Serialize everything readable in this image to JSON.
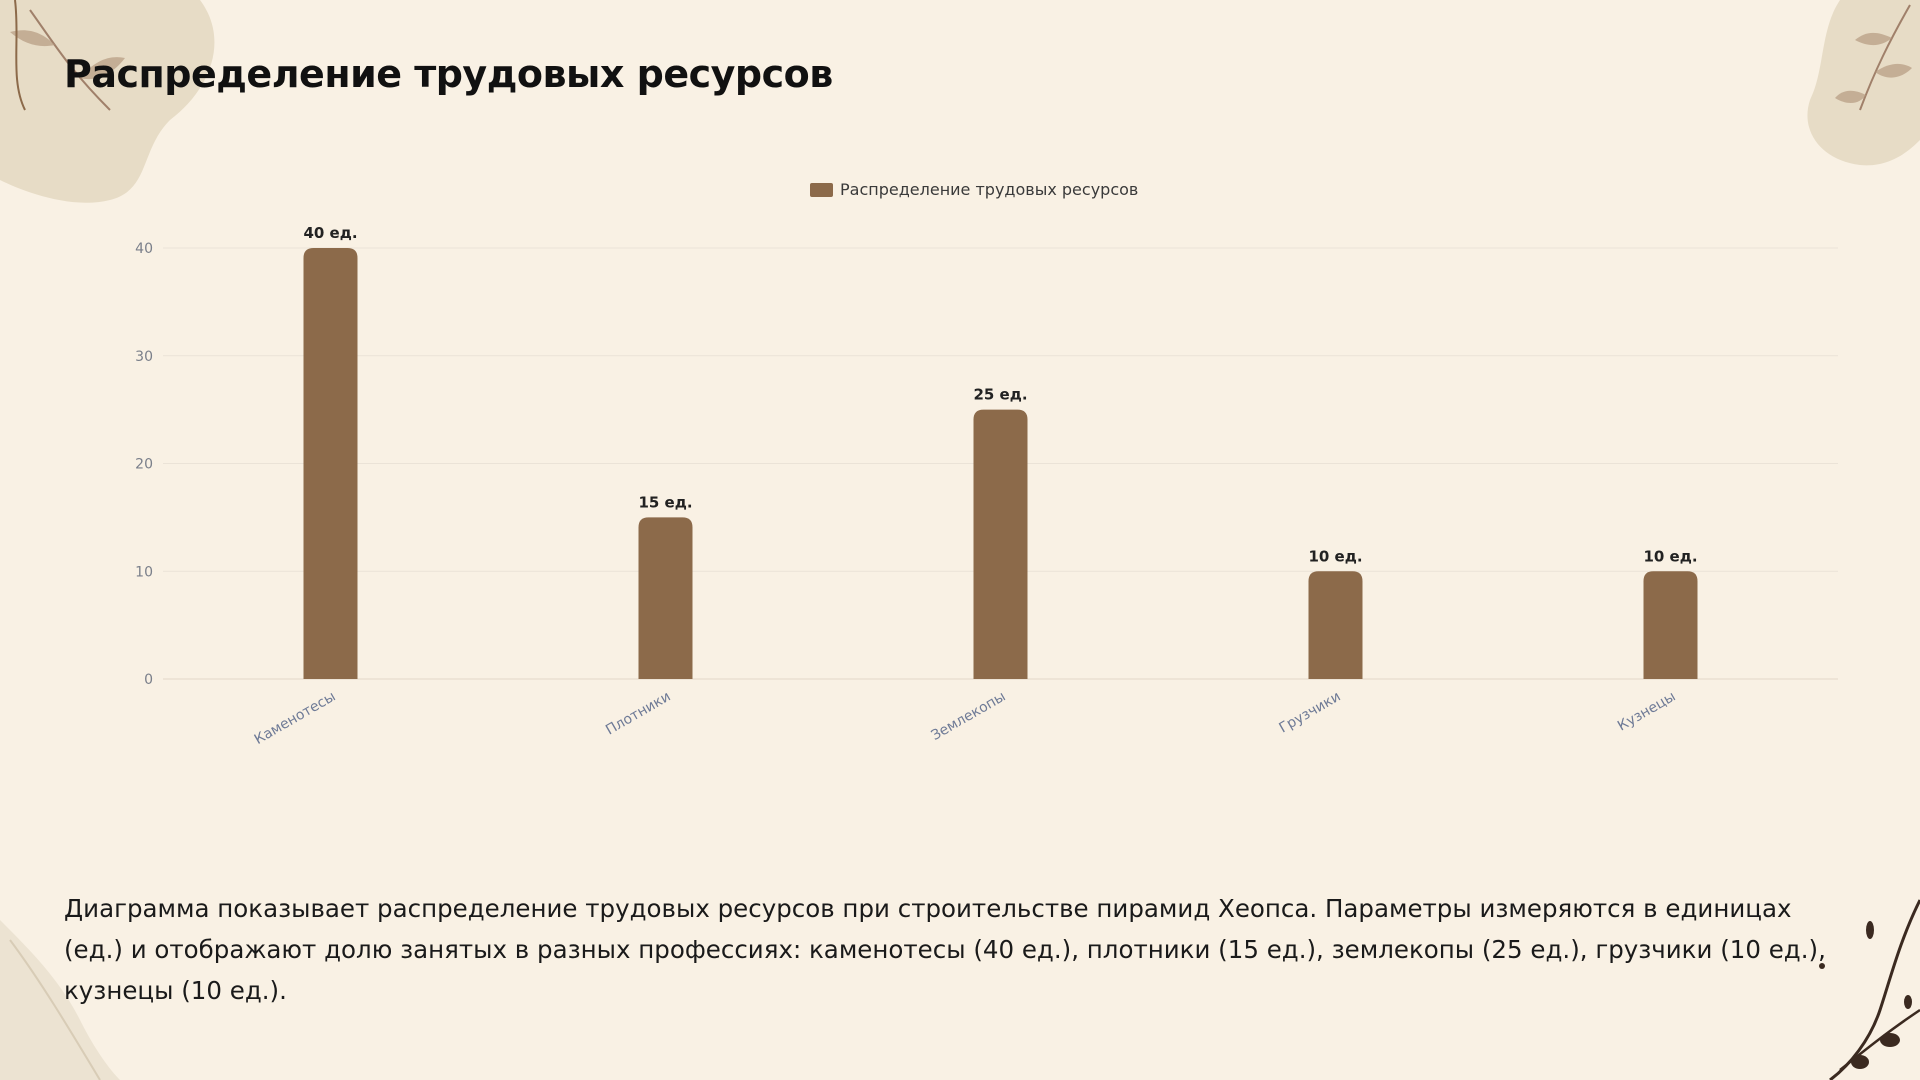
{
  "slide": {
    "title": "Распределение трудовых ресурсов",
    "caption": "Диаграмма показывает распределение трудовых ресурсов при строительстве пирамид Хеопса. Параметры измеряются в единицах (ед.) и отображают долю занятых в разных профессиях: каменотесы (40 ед.), плотники (15 ед.), землекопы (25 ед.), грузчики (10 ед.), кузнецы (10 ед.)."
  },
  "colors": {
    "background": "#f9f1e4",
    "bar": "#8c6a4a",
    "grid": "#ebe3d7",
    "tick_label": "#7a7f8a",
    "category_label": "#6e7a96",
    "data_label": "#222222",
    "title": "#111111",
    "caption": "#1a1a1a",
    "leaf_light": "#e7dcc6",
    "leaf_branch": "#a0806a",
    "branch_dark": "#3b2a20"
  },
  "chart_data": {
    "type": "bar",
    "categories": [
      "Каменотесы",
      "Плотники",
      "Землекопы",
      "Грузчики",
      "Кузнецы"
    ],
    "series": [
      {
        "name": "Распределение трудовых ресурсов",
        "values": [
          40,
          15,
          25,
          10,
          10
        ],
        "data_labels": [
          "40 ед.",
          "15 ед.",
          "25 ед.",
          "10 ед.",
          "10 ед."
        ]
      }
    ],
    "yticks": [
      "0",
      "10",
      "20",
      "30",
      "40"
    ],
    "ylim": [
      0,
      40
    ],
    "grid": true,
    "legend": "top-center",
    "title": "",
    "xlabel": "",
    "ylabel": ""
  }
}
